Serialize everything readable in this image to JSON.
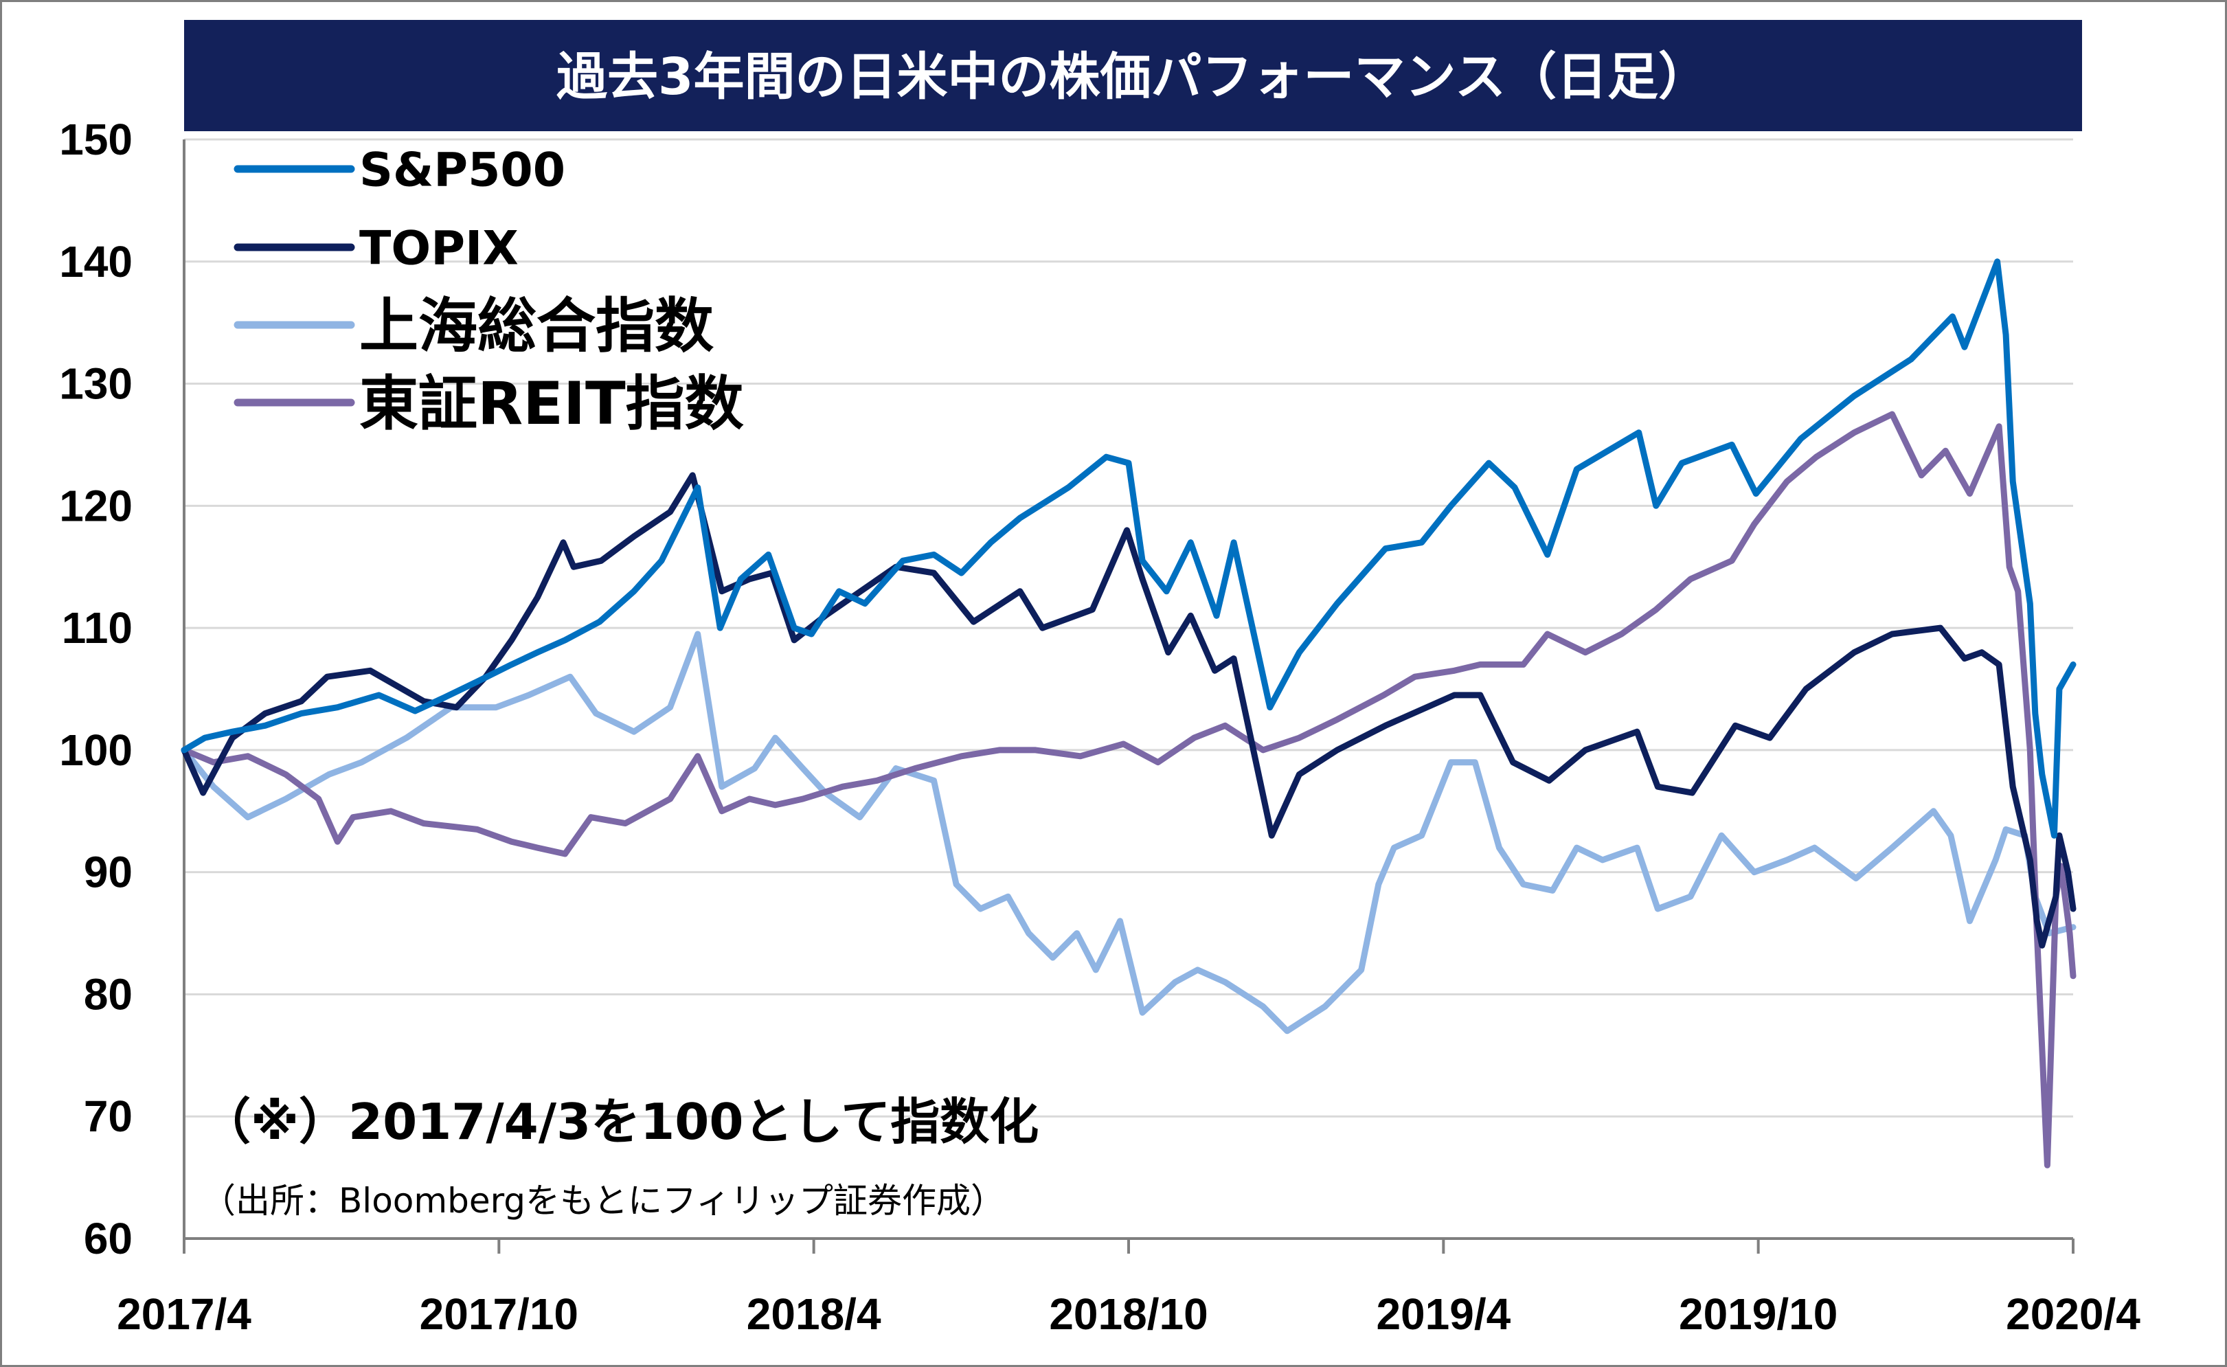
{
  "chart_data": {
    "type": "line",
    "title": "過去3年間の日米中の株価パフォーマンス（日足）",
    "note": "（※）2017/4/3を100として指数化",
    "source": "（出所：Bloombergをもとにフィリップ証券作成）",
    "xlabel": "",
    "ylabel": "",
    "ylim": [
      60,
      150
    ],
    "yticks": [
      "150",
      "140",
      "130",
      "120",
      "110",
      "100",
      "90",
      "80",
      "70",
      "60"
    ],
    "xticks": [
      "2017/4",
      "2017/10",
      "2018/4",
      "2018/10",
      "2019/4",
      "2019/10",
      "2020/4"
    ],
    "xlim": [
      "2017-04-03",
      "2020-04-03"
    ],
    "grid": true,
    "legend_position": "top-left",
    "series": [
      {
        "name": "S&P500",
        "color": "#0070c0",
        "points": [
          [
            "2017-04-03",
            100
          ],
          [
            "2017-04-15",
            101
          ],
          [
            "2017-05-01",
            101.5
          ],
          [
            "2017-05-20",
            102
          ],
          [
            "2017-06-10",
            103
          ],
          [
            "2017-07-01",
            103.5
          ],
          [
            "2017-07-25",
            104.5
          ],
          [
            "2017-08-15",
            103.2
          ],
          [
            "2017-09-01",
            104.3
          ],
          [
            "2017-09-20",
            105.6
          ],
          [
            "2017-10-10",
            107
          ],
          [
            "2017-10-25",
            108
          ],
          [
            "2017-11-10",
            109
          ],
          [
            "2017-11-30",
            110.5
          ],
          [
            "2017-12-20",
            113
          ],
          [
            "2018-01-05",
            115.5
          ],
          [
            "2018-01-26",
            121.5
          ],
          [
            "2018-02-08",
            110
          ],
          [
            "2018-02-20",
            114
          ],
          [
            "2018-03-08",
            116
          ],
          [
            "2018-03-23",
            110
          ],
          [
            "2018-04-02",
            109.5
          ],
          [
            "2018-04-18",
            113
          ],
          [
            "2018-05-03",
            112
          ],
          [
            "2018-05-25",
            115.5
          ],
          [
            "2018-06-12",
            116
          ],
          [
            "2018-06-28",
            114.5
          ],
          [
            "2018-07-15",
            117
          ],
          [
            "2018-08-01",
            119
          ],
          [
            "2018-08-29",
            121.5
          ],
          [
            "2018-09-20",
            124
          ],
          [
            "2018-10-03",
            123.5
          ],
          [
            "2018-10-11",
            115.5
          ],
          [
            "2018-10-25",
            113
          ],
          [
            "2018-11-08",
            117
          ],
          [
            "2018-11-23",
            111
          ],
          [
            "2018-12-03",
            117
          ],
          [
            "2018-12-24",
            103.5
          ],
          [
            "2019-01-10",
            108
          ],
          [
            "2019-02-01",
            112
          ],
          [
            "2019-03-01",
            116.5
          ],
          [
            "2019-03-22",
            117
          ],
          [
            "2019-04-08",
            120
          ],
          [
            "2019-04-30",
            123.5
          ],
          [
            "2019-05-15",
            121.5
          ],
          [
            "2019-06-03",
            116
          ],
          [
            "2019-06-20",
            123
          ],
          [
            "2019-07-26",
            126
          ],
          [
            "2019-08-05",
            120
          ],
          [
            "2019-08-20",
            123.5
          ],
          [
            "2019-09-18",
            125
          ],
          [
            "2019-10-02",
            121
          ],
          [
            "2019-10-28",
            125.5
          ],
          [
            "2019-11-28",
            129
          ],
          [
            "2019-12-31",
            132
          ],
          [
            "2020-01-24",
            135.5
          ],
          [
            "2020-01-31",
            133
          ],
          [
            "2020-02-19",
            140
          ],
          [
            "2020-02-24",
            134
          ],
          [
            "2020-02-28",
            122
          ],
          [
            "2020-03-09",
            112
          ],
          [
            "2020-03-12",
            103
          ],
          [
            "2020-03-16",
            98
          ],
          [
            "2020-03-23",
            93
          ],
          [
            "2020-03-26",
            105
          ],
          [
            "2020-04-01",
            106.5
          ],
          [
            "2020-04-03",
            107
          ]
        ]
      },
      {
        "name": "TOPIX",
        "color": "#0d1f5c",
        "points": [
          [
            "2017-04-03",
            100
          ],
          [
            "2017-04-14",
            96.5
          ],
          [
            "2017-05-01",
            101
          ],
          [
            "2017-05-20",
            103
          ],
          [
            "2017-06-10",
            104
          ],
          [
            "2017-06-25",
            106
          ],
          [
            "2017-07-20",
            106.5
          ],
          [
            "2017-08-20",
            104
          ],
          [
            "2017-09-08",
            103.5
          ],
          [
            "2017-09-25",
            106
          ],
          [
            "2017-10-10",
            109
          ],
          [
            "2017-10-25",
            112.5
          ],
          [
            "2017-11-09",
            117
          ],
          [
            "2017-11-15",
            115
          ],
          [
            "2017-12-01",
            115.5
          ],
          [
            "2017-12-20",
            117.5
          ],
          [
            "2018-01-10",
            119.5
          ],
          [
            "2018-01-23",
            122.5
          ],
          [
            "2018-02-09",
            113
          ],
          [
            "2018-02-25",
            114
          ],
          [
            "2018-03-10",
            114.5
          ],
          [
            "2018-03-23",
            109
          ],
          [
            "2018-04-10",
            111
          ],
          [
            "2018-05-21",
            115
          ],
          [
            "2018-06-12",
            114.5
          ],
          [
            "2018-07-05",
            110.5
          ],
          [
            "2018-08-01",
            113
          ],
          [
            "2018-08-14",
            110
          ],
          [
            "2018-09-12",
            111.5
          ],
          [
            "2018-10-02",
            118
          ],
          [
            "2018-10-11",
            114
          ],
          [
            "2018-10-26",
            108
          ],
          [
            "2018-11-08",
            111
          ],
          [
            "2018-11-22",
            106.5
          ],
          [
            "2018-12-03",
            107.5
          ],
          [
            "2018-12-25",
            93
          ],
          [
            "2019-01-10",
            98
          ],
          [
            "2019-02-01",
            100
          ],
          [
            "2019-03-01",
            102
          ],
          [
            "2019-04-10",
            104.5
          ],
          [
            "2019-04-25",
            104.5
          ],
          [
            "2019-05-14",
            99
          ],
          [
            "2019-06-04",
            97.5
          ],
          [
            "2019-06-25",
            100
          ],
          [
            "2019-07-25",
            101.5
          ],
          [
            "2019-08-06",
            97
          ],
          [
            "2019-08-26",
            96.5
          ],
          [
            "2019-09-20",
            102
          ],
          [
            "2019-10-10",
            101
          ],
          [
            "2019-10-31",
            105
          ],
          [
            "2019-11-28",
            108
          ],
          [
            "2019-12-20",
            109.5
          ],
          [
            "2020-01-17",
            110
          ],
          [
            "2020-01-31",
            107.5
          ],
          [
            "2020-02-10",
            108
          ],
          [
            "2020-02-20",
            107
          ],
          [
            "2020-02-28",
            97
          ],
          [
            "2020-03-09",
            91
          ],
          [
            "2020-03-13",
            86
          ],
          [
            "2020-03-16",
            84
          ],
          [
            "2020-03-24",
            88
          ],
          [
            "2020-03-26",
            93
          ],
          [
            "2020-03-31",
            90
          ],
          [
            "2020-04-03",
            87
          ]
        ]
      },
      {
        "name": "上海総合指数",
        "color": "#8fb4e3",
        "points": [
          [
            "2017-04-03",
            100
          ],
          [
            "2017-04-20",
            97
          ],
          [
            "2017-05-10",
            94.5
          ],
          [
            "2017-06-01",
            96
          ],
          [
            "2017-06-26",
            98
          ],
          [
            "2017-07-15",
            99
          ],
          [
            "2017-08-10",
            101
          ],
          [
            "2017-09-05",
            103.5
          ],
          [
            "2017-10-01",
            103.5
          ],
          [
            "2017-10-20",
            104.5
          ],
          [
            "2017-11-13",
            106
          ],
          [
            "2017-11-28",
            103
          ],
          [
            "2017-12-20",
            101.5
          ],
          [
            "2018-01-10",
            103.5
          ],
          [
            "2018-01-26",
            109.5
          ],
          [
            "2018-02-09",
            97
          ],
          [
            "2018-02-28",
            98.5
          ],
          [
            "2018-03-12",
            101
          ],
          [
            "2018-03-28",
            98.5
          ],
          [
            "2018-04-10",
            96.5
          ],
          [
            "2018-04-30",
            94.5
          ],
          [
            "2018-05-21",
            98.5
          ],
          [
            "2018-06-12",
            97.5
          ],
          [
            "2018-06-25",
            89
          ],
          [
            "2018-07-09",
            87
          ],
          [
            "2018-07-25",
            88
          ],
          [
            "2018-08-06",
            85
          ],
          [
            "2018-08-20",
            83
          ],
          [
            "2018-09-03",
            85
          ],
          [
            "2018-09-14",
            82
          ],
          [
            "2018-09-28",
            86
          ],
          [
            "2018-10-11",
            78.5
          ],
          [
            "2018-10-30",
            81
          ],
          [
            "2018-11-12",
            82
          ],
          [
            "2018-11-28",
            81
          ],
          [
            "2018-12-20",
            79
          ],
          [
            "2019-01-03",
            77
          ],
          [
            "2019-01-25",
            79
          ],
          [
            "2019-02-15",
            82
          ],
          [
            "2019-02-25",
            89
          ],
          [
            "2019-03-06",
            92
          ],
          [
            "2019-03-22",
            93
          ],
          [
            "2019-04-08",
            99
          ],
          [
            "2019-04-22",
            99
          ],
          [
            "2019-05-06",
            92
          ],
          [
            "2019-05-20",
            89
          ],
          [
            "2019-06-06",
            88.5
          ],
          [
            "2019-06-20",
            92
          ],
          [
            "2019-07-05",
            91
          ],
          [
            "2019-07-25",
            92
          ],
          [
            "2019-08-06",
            87
          ],
          [
            "2019-08-25",
            88
          ],
          [
            "2019-09-12",
            93
          ],
          [
            "2019-10-01",
            90
          ],
          [
            "2019-10-20",
            91
          ],
          [
            "2019-11-05",
            92
          ],
          [
            "2019-11-29",
            89.5
          ],
          [
            "2019-12-20",
            92
          ],
          [
            "2020-01-13",
            95
          ],
          [
            "2020-01-23",
            93
          ],
          [
            "2020-02-03",
            86
          ],
          [
            "2020-02-18",
            91
          ],
          [
            "2020-02-24",
            93.5
          ],
          [
            "2020-03-06",
            93
          ],
          [
            "2020-03-12",
            88
          ],
          [
            "2020-03-20",
            85
          ],
          [
            "2020-04-03",
            85.5
          ]
        ]
      },
      {
        "name": "東証REIT指数",
        "color": "#7b68a6",
        "points": [
          [
            "2017-04-03",
            100
          ],
          [
            "2017-04-20",
            99
          ],
          [
            "2017-05-10",
            99.5
          ],
          [
            "2017-06-01",
            98
          ],
          [
            "2017-06-20",
            96
          ],
          [
            "2017-07-01",
            92.5
          ],
          [
            "2017-07-10",
            94.5
          ],
          [
            "2017-08-01",
            95
          ],
          [
            "2017-08-20",
            94
          ],
          [
            "2017-09-20",
            93.5
          ],
          [
            "2017-10-10",
            92.5
          ],
          [
            "2017-10-25",
            92
          ],
          [
            "2017-11-10",
            91.5
          ],
          [
            "2017-11-25",
            94.5
          ],
          [
            "2017-12-15",
            94
          ],
          [
            "2018-01-10",
            96
          ],
          [
            "2018-01-26",
            99.5
          ],
          [
            "2018-02-09",
            95
          ],
          [
            "2018-02-25",
            96
          ],
          [
            "2018-03-12",
            95.5
          ],
          [
            "2018-03-28",
            96
          ],
          [
            "2018-04-20",
            97
          ],
          [
            "2018-05-10",
            97.5
          ],
          [
            "2018-06-01",
            98.5
          ],
          [
            "2018-06-28",
            99.5
          ],
          [
            "2018-07-20",
            100
          ],
          [
            "2018-08-10",
            100
          ],
          [
            "2018-09-05",
            99.5
          ],
          [
            "2018-09-30",
            100.5
          ],
          [
            "2018-10-20",
            99
          ],
          [
            "2018-11-10",
            101
          ],
          [
            "2018-11-28",
            102
          ],
          [
            "2018-12-20",
            100
          ],
          [
            "2019-01-10",
            101
          ],
          [
            "2019-02-01",
            102.5
          ],
          [
            "2019-02-28",
            104.5
          ],
          [
            "2019-03-18",
            106
          ],
          [
            "2019-04-10",
            106.5
          ],
          [
            "2019-04-25",
            107
          ],
          [
            "2019-05-20",
            107
          ],
          [
            "2019-06-03",
            109.5
          ],
          [
            "2019-06-25",
            108
          ],
          [
            "2019-07-16",
            109.5
          ],
          [
            "2019-08-05",
            111.5
          ],
          [
            "2019-08-25",
            114
          ],
          [
            "2019-09-18",
            115.5
          ],
          [
            "2019-10-01",
            118.5
          ],
          [
            "2019-10-20",
            122
          ],
          [
            "2019-11-06",
            124
          ],
          [
            "2019-11-28",
            126
          ],
          [
            "2019-12-20",
            127.5
          ],
          [
            "2020-01-06",
            122.5
          ],
          [
            "2020-01-20",
            124.5
          ],
          [
            "2020-02-03",
            121
          ],
          [
            "2020-02-20",
            126.5
          ],
          [
            "2020-02-26",
            115
          ],
          [
            "2020-03-02",
            113
          ],
          [
            "2020-03-09",
            100
          ],
          [
            "2020-03-13",
            85
          ],
          [
            "2020-03-19",
            66
          ],
          [
            "2020-03-24",
            88
          ],
          [
            "2020-03-27",
            90.5
          ],
          [
            "2020-04-01",
            85
          ],
          [
            "2020-04-03",
            81.5
          ]
        ]
      }
    ]
  }
}
